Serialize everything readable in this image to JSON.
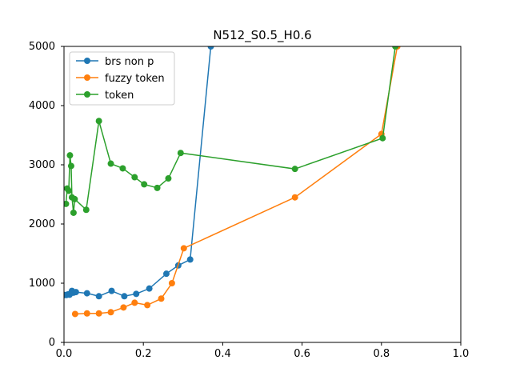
{
  "chart_data": {
    "type": "line",
    "title": "N512_S0.5_H0.6",
    "xlabel": "",
    "ylabel": "",
    "xlim": [
      0.0,
      1.0
    ],
    "ylim": [
      0,
      5000
    ],
    "x_ticks": [
      "0.0",
      "0.2",
      "0.4",
      "0.6",
      "0.8",
      "1.0"
    ],
    "y_ticks": [
      "0",
      "1000",
      "2000",
      "3000",
      "4000",
      "5000"
    ],
    "grid": false,
    "legend_position": "top-left",
    "series": [
      {
        "name": "brs non p",
        "color": "#1f77b4",
        "marker": "circle",
        "points": [
          [
            0.002,
            800
          ],
          [
            0.006,
            800
          ],
          [
            0.01,
            810
          ],
          [
            0.014,
            805
          ],
          [
            0.017,
            830
          ],
          [
            0.02,
            870
          ],
          [
            0.024,
            840
          ],
          [
            0.03,
            850
          ],
          [
            0.058,
            830
          ],
          [
            0.088,
            780
          ],
          [
            0.12,
            870
          ],
          [
            0.152,
            780
          ],
          [
            0.182,
            820
          ],
          [
            0.215,
            910
          ],
          [
            0.258,
            1160
          ],
          [
            0.288,
            1300
          ],
          [
            0.318,
            1400
          ],
          [
            0.37,
            5000
          ]
        ]
      },
      {
        "name": "fuzzy token",
        "color": "#ff7f0e",
        "marker": "circle",
        "points": [
          [
            0.028,
            480
          ],
          [
            0.058,
            490
          ],
          [
            0.088,
            490
          ],
          [
            0.118,
            510
          ],
          [
            0.15,
            590
          ],
          [
            0.178,
            670
          ],
          [
            0.21,
            630
          ],
          [
            0.245,
            740
          ],
          [
            0.272,
            1000
          ],
          [
            0.302,
            1590
          ],
          [
            0.582,
            2450
          ],
          [
            0.8,
            3520
          ],
          [
            0.84,
            5000
          ]
        ]
      },
      {
        "name": "token",
        "color": "#2ca02c",
        "marker": "circle",
        "points": [
          [
            0.005,
            2340
          ],
          [
            0.008,
            2600
          ],
          [
            0.012,
            2560
          ],
          [
            0.015,
            3160
          ],
          [
            0.018,
            2980
          ],
          [
            0.02,
            2450
          ],
          [
            0.024,
            2190
          ],
          [
            0.027,
            2420
          ],
          [
            0.056,
            2240
          ],
          [
            0.088,
            3740
          ],
          [
            0.118,
            3020
          ],
          [
            0.148,
            2940
          ],
          [
            0.178,
            2790
          ],
          [
            0.202,
            2670
          ],
          [
            0.235,
            2610
          ],
          [
            0.263,
            2770
          ],
          [
            0.294,
            3200
          ],
          [
            0.582,
            2930
          ],
          [
            0.803,
            3450
          ],
          [
            0.835,
            5000
          ]
        ]
      }
    ]
  }
}
